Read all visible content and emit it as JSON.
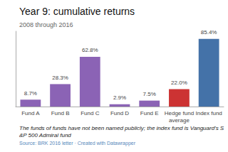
{
  "chart_data": {
    "type": "bar",
    "title": "Year 9: cumulative returns",
    "subtitle": "2008 through 2016",
    "categories": [
      "Fund A",
      "Fund B",
      "Fund C",
      "Fund D",
      "Fund E",
      "Hedge fund\naverage",
      "Index fund"
    ],
    "values": [
      8.7,
      28.3,
      62.8,
      2.9,
      7.5,
      22.0,
      85.4
    ],
    "value_labels": [
      "8.7%",
      "28.3%",
      "62.8%",
      "2.9%",
      "7.5%",
      "22.0%",
      "85.4%"
    ],
    "colors": [
      "#8b63b5",
      "#8b63b5",
      "#8b63b5",
      "#8b63b5",
      "#8b63b5",
      "#cc3333",
      "#4472a8"
    ],
    "ylim": [
      0,
      95
    ],
    "data_labels": true,
    "tick_labels": "x",
    "grid": false,
    "annotations": [
      "The funds of funds have not been named publicly; the index fund is Vanguard's S&P 500 Admiral fund",
      "Source: BRK 2016 letter · Created with Datawrapper"
    ]
  }
}
